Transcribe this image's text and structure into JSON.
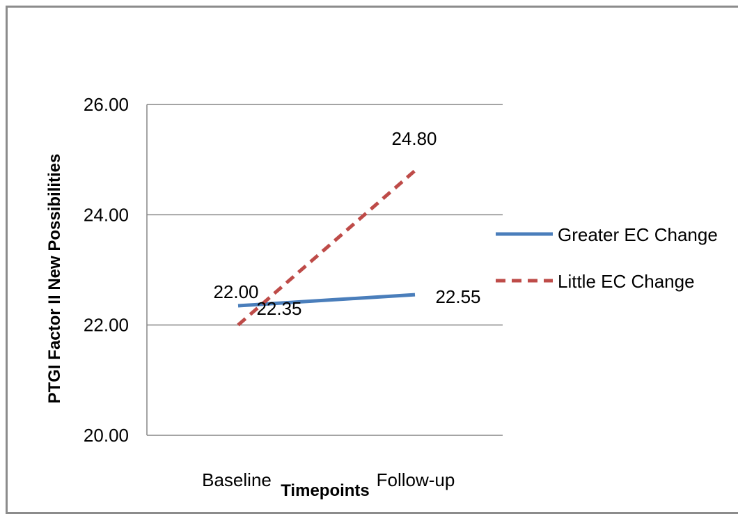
{
  "chart_data": {
    "type": "line",
    "title": "",
    "xlabel": "Timepoints",
    "ylabel": "PTGI Factor II New Possibilities",
    "categories": [
      "Baseline",
      "Follow-up"
    ],
    "ylim": [
      20,
      26
    ],
    "yticks": [
      20,
      22,
      24,
      26
    ],
    "ytick_labels": [
      "20.00",
      "22.00",
      "24.00",
      "26.00"
    ],
    "grid": true,
    "legend_position": "right",
    "series": [
      {
        "name": "Greater EC Change",
        "values": [
          22.35,
          22.55
        ],
        "labels": [
          "22.35",
          "22.55"
        ],
        "color": "#4a7ebb",
        "style": "solid"
      },
      {
        "name": "Little EC Change",
        "values": [
          22.0,
          24.8
        ],
        "labels": [
          "22.00",
          "24.80"
        ],
        "color": "#be4b48",
        "style": "dashed"
      }
    ]
  }
}
